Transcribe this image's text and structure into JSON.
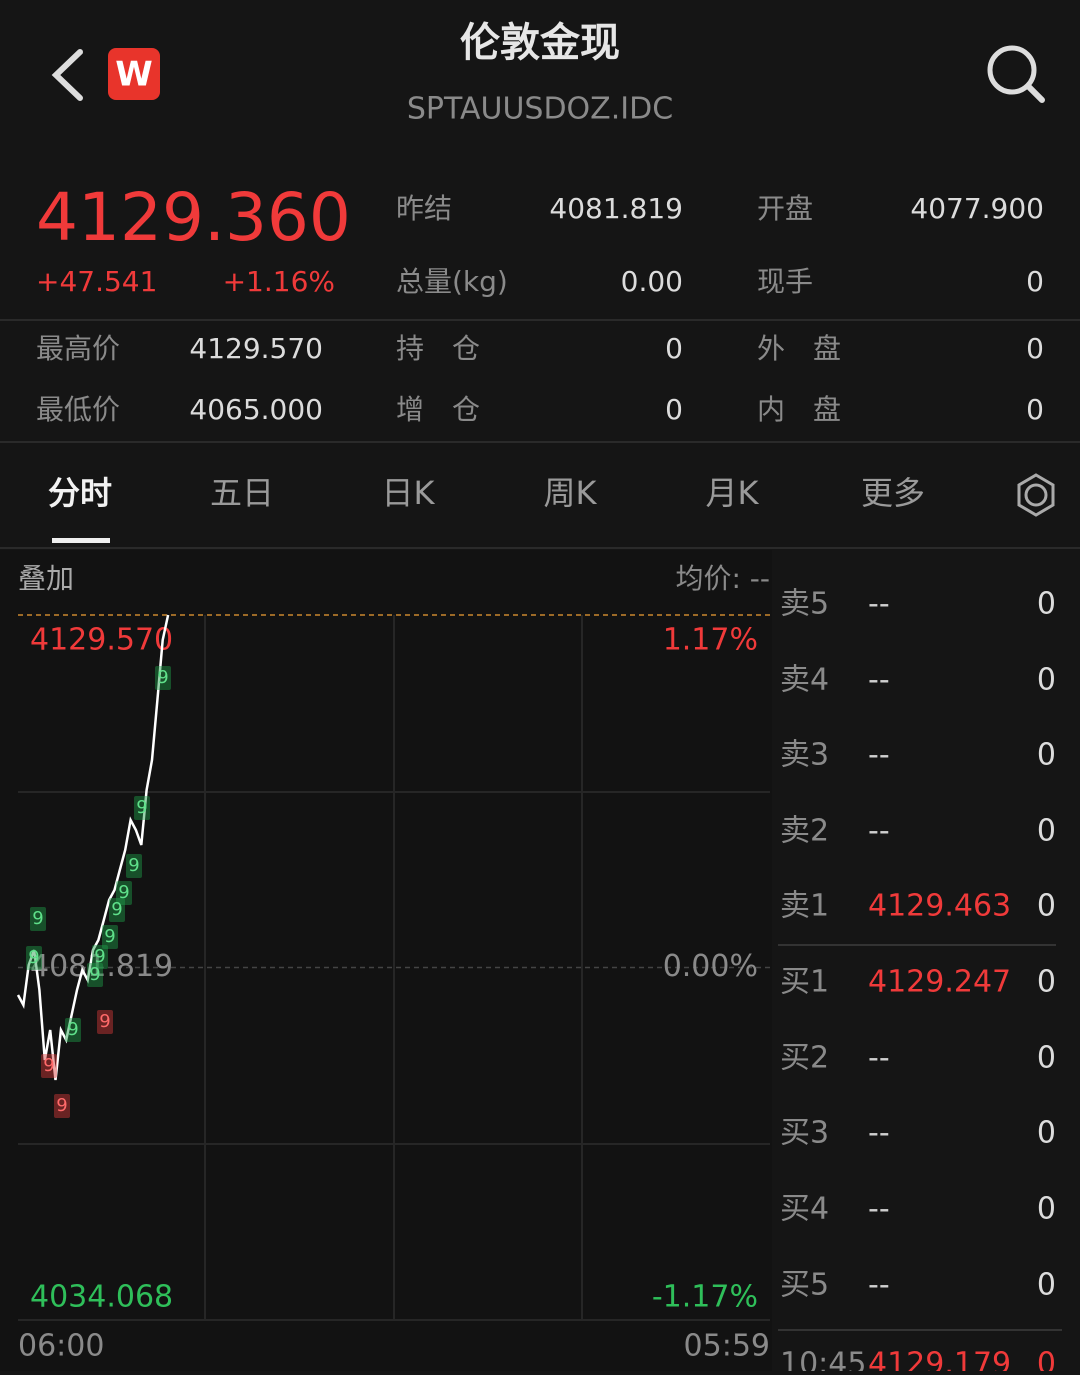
{
  "header": {
    "title": "伦敦金现",
    "code": "SPTAUUSDOZ.IDC",
    "logo": "W"
  },
  "quote": {
    "price": "4129.360",
    "change": "+47.541",
    "change_pct": "+1.16%"
  },
  "stats": [
    [
      "昨结",
      "4081.819",
      "开盘",
      "4077.900"
    ],
    [
      "总量(kg)",
      "0.00",
      "现手",
      "0"
    ]
  ],
  "stats2": [
    [
      "最高价",
      "4129.570",
      "持　仓",
      "0",
      "外　盘",
      "0"
    ],
    [
      "最低价",
      "4065.000",
      "增　仓",
      "0",
      "内　盘",
      "0"
    ]
  ],
  "tabs": [
    "分时",
    "五日",
    "日K",
    "周K",
    "月K",
    "更多"
  ],
  "chart": {
    "type": "line",
    "overlay": "叠加",
    "avg_label": "均价: --",
    "ylim": [
      4034.068,
      4129.57
    ],
    "yticks": [
      {
        "value": 4129.57,
        "label": "4129.570"
      },
      {
        "value": 4081.819,
        "label": "4081.819"
      },
      {
        "value": 4034.068,
        "label": "4034.068"
      }
    ],
    "pct_labels": [
      "1.17%",
      "0.00%",
      "-1.17%"
    ],
    "x_labels": [
      "06:00",
      "05:59"
    ],
    "color": "#ffffff",
    "values": [
      4078.1,
      4076.74,
      4082.16,
      4084.19,
      4078.77,
      4069.29,
      4073.35,
      4066.58,
      4073.35,
      4072.0,
      4075.39,
      4078.77,
      4081.48,
      4080.13,
      4084.19,
      4085.55,
      4088.25,
      4090.96,
      4092.32,
      4095.03,
      4097.74,
      4101.8,
      4100.45,
      4098.41,
      4105.86,
      4109.93,
      4118.06,
      4126.18,
      4129.57
    ],
    "markers": [
      {
        "label": "9",
        "color": "#1f9d4a"
      },
      {
        "label": "9",
        "color": "#1f9d4a"
      },
      {
        "label": "9",
        "color": "#1f9d4a"
      },
      {
        "label": "9",
        "color": "#1f9d4a"
      },
      {
        "label": "9",
        "color": "#1f9d4a"
      },
      {
        "label": "9",
        "color": "#1f9d4a"
      },
      {
        "label": "9",
        "color": "#1f9d4a"
      },
      {
        "label": "9",
        "color": "#1f9d4a"
      },
      {
        "label": "9",
        "color": "#1f9d4a"
      },
      {
        "label": "9",
        "color": "#1f9d4a"
      },
      {
        "label": "9",
        "color": "#1f9d4a"
      },
      {
        "label": "9",
        "color": "#d83a3a"
      },
      {
        "label": "9",
        "color": "#d83a3a"
      },
      {
        "label": "9",
        "color": "#d83a3a"
      }
    ]
  },
  "orderbook": {
    "rows": [
      [
        "卖5",
        "--",
        "0"
      ],
      [
        "卖4",
        "--",
        "0"
      ],
      [
        "卖3",
        "--",
        "0"
      ],
      [
        "卖2",
        "--",
        "0"
      ],
      [
        "卖1",
        "4129.463",
        "0"
      ],
      [
        "买1",
        "4129.247",
        "0"
      ],
      [
        "买2",
        "--",
        "0"
      ],
      [
        "买3",
        "--",
        "0"
      ],
      [
        "买4",
        "--",
        "0"
      ],
      [
        "买5",
        "--",
        "0"
      ]
    ],
    "trades": [
      [
        "10:45",
        "4129.179",
        "0"
      ]
    ]
  }
}
